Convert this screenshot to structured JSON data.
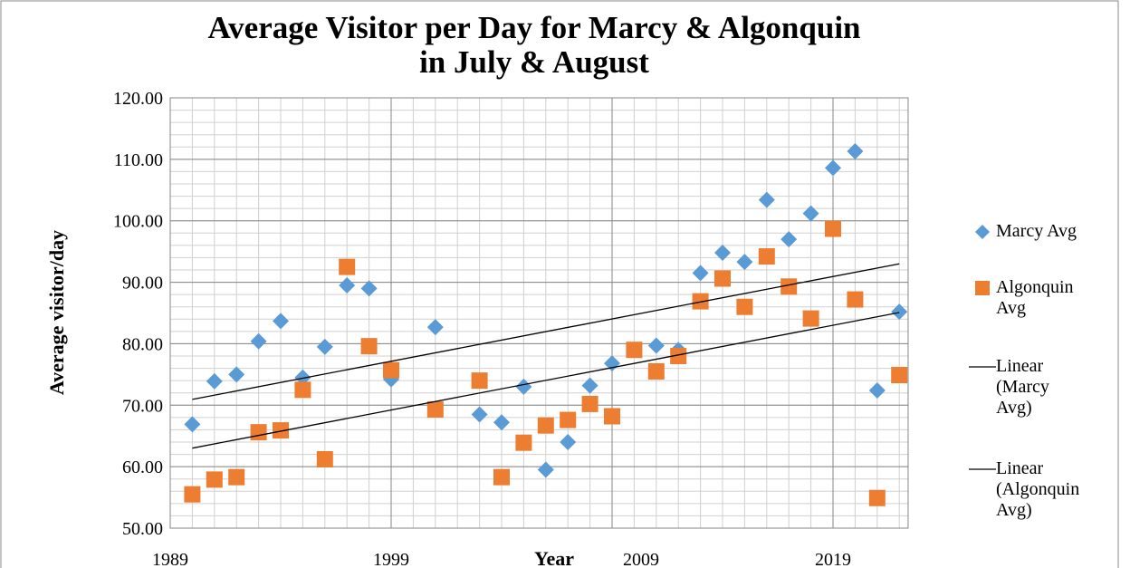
{
  "chart_data": {
    "type": "scatter",
    "title": "Average Visitor per Day for Marcy & Algonquin in July & August",
    "x_label": "Year",
    "y_label": "Average visitor/day",
    "xlim": [
      1989,
      2022.4
    ],
    "xticks": [
      1989,
      1999,
      2009,
      2019
    ],
    "ylim": [
      50,
      120
    ],
    "yticks": [
      {
        "value": 50,
        "label": "50.00"
      },
      {
        "value": 60,
        "label": "60.00"
      },
      {
        "value": 70,
        "label": "70.00"
      },
      {
        "value": 80,
        "label": "80.00"
      },
      {
        "value": 90,
        "label": "90.00"
      },
      {
        "value": 100,
        "label": "100.00"
      },
      {
        "value": 110,
        "label": "110.00"
      },
      {
        "value": 120,
        "label": "120.00"
      }
    ],
    "grid": true,
    "legend": "right",
    "series": [
      {
        "name": "Marcy Avg",
        "color": "#5b9bd5",
        "marker": "diamond",
        "trendline_name": "Linear (Marcy Avg)",
        "x": [
          1990,
          1991,
          1992,
          1993,
          1994,
          1995,
          1996,
          1997,
          1998,
          1999,
          2001,
          2003,
          2004,
          2005,
          2006,
          2007,
          2008,
          2009,
          2010,
          2011,
          2012,
          2013,
          2014,
          2015,
          2016,
          2017,
          2018,
          2019,
          2020,
          2021,
          2022
        ],
        "values": [
          66.9,
          73.9,
          75.0,
          80.4,
          83.7,
          74.5,
          79.5,
          89.5,
          89.0,
          74.2,
          82.7,
          68.5,
          67.2,
          73.0,
          59.5,
          64.0,
          73.2,
          76.8,
          79.0,
          79.7,
          79.0,
          91.5,
          94.8,
          93.3,
          103.4,
          97.0,
          101.2,
          108.6,
          111.3,
          72.4,
          85.2
        ]
      },
      {
        "name": "Algonquin Avg",
        "color": "#ed7d31",
        "marker": "square",
        "trendline_name": "Linear (Algonquin Avg)",
        "x": [
          1990,
          1991,
          1992,
          1993,
          1994,
          1995,
          1996,
          1997,
          1998,
          1999,
          2001,
          2003,
          2004,
          2005,
          2006,
          2007,
          2008,
          2009,
          2010,
          2011,
          2012,
          2013,
          2014,
          2015,
          2016,
          2017,
          2018,
          2019,
          2020,
          2021,
          2022
        ],
        "values": [
          55.5,
          57.9,
          58.3,
          65.6,
          65.9,
          72.5,
          61.2,
          92.5,
          79.6,
          75.7,
          69.3,
          74.0,
          58.3,
          63.9,
          66.7,
          67.6,
          70.2,
          68.2,
          79.0,
          75.5,
          78.0,
          86.9,
          90.6,
          86.0,
          94.2,
          89.3,
          84.1,
          98.7,
          87.2,
          54.9,
          74.9
        ]
      }
    ]
  }
}
